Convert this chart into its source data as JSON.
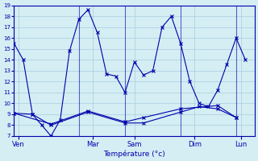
{
  "background_color": "#d4eef4",
  "line_color": "#0000aa",
  "grid_color": "#aaccdd",
  "xlabel": "Température (°c)",
  "ylim": [
    7,
    19
  ],
  "yticks": [
    7,
    8,
    9,
    10,
    11,
    12,
    13,
    14,
    15,
    16,
    17,
    18,
    19
  ],
  "xlim": [
    0,
    26
  ],
  "day_labels": [
    "Ven",
    "Mar",
    "Sam",
    "Dim",
    "Lun"
  ],
  "day_positions": [
    0.5,
    8.5,
    13.0,
    19.5,
    24.5
  ],
  "vline_positions": [
    0,
    7,
    12,
    18,
    24
  ],
  "line1_x": [
    0,
    1,
    2,
    3,
    4,
    5,
    6,
    7,
    8,
    9,
    10,
    11,
    12,
    13,
    14,
    15,
    16,
    17,
    18,
    19,
    20,
    21,
    22,
    23,
    24,
    25
  ],
  "line1_y": [
    15.5,
    14.0,
    9.0,
    8.0,
    7.0,
    8.5,
    14.8,
    17.7,
    18.6,
    16.5,
    12.7,
    12.5,
    11.0,
    13.8,
    12.6,
    13.0,
    17.0,
    18.0,
    15.5,
    12.0,
    10.0,
    9.7,
    11.2,
    13.6,
    16.0,
    14.0
  ],
  "line2_x": [
    0,
    2,
    4,
    8,
    12,
    14,
    18,
    20,
    22,
    24
  ],
  "line2_y": [
    9.1,
    9.0,
    8.0,
    9.2,
    8.2,
    8.2,
    9.2,
    9.7,
    9.5,
    8.7
  ],
  "line3_x": [
    0,
    4,
    8,
    12,
    14,
    18,
    22,
    24
  ],
  "line3_y": [
    9.1,
    8.1,
    9.3,
    8.3,
    8.7,
    9.5,
    9.8,
    8.7
  ]
}
